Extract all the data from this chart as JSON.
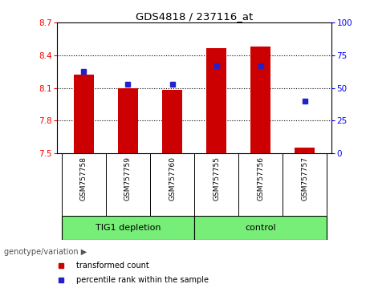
{
  "title": "GDS4818 / 237116_at",
  "samples": [
    "GSM757758",
    "GSM757759",
    "GSM757760",
    "GSM757755",
    "GSM757756",
    "GSM757757"
  ],
  "bar_values": [
    8.22,
    8.1,
    8.08,
    8.47,
    8.48,
    7.55
  ],
  "percentile_values": [
    63,
    53,
    53,
    67,
    67,
    40
  ],
  "ylim_left": [
    7.5,
    8.7
  ],
  "ylim_right": [
    0,
    100
  ],
  "yticks_left": [
    7.5,
    7.8,
    8.1,
    8.4,
    8.7
  ],
  "yticks_right": [
    0,
    25,
    50,
    75,
    100
  ],
  "bar_color": "#cc0000",
  "dot_color": "#2222cc",
  "bar_bottom": 7.5,
  "group1_label": "TIG1 depletion",
  "group2_label": "control",
  "group1_indices": [
    0,
    1,
    2
  ],
  "group2_indices": [
    3,
    4,
    5
  ],
  "group_fill": "#77ee77",
  "xtick_bg": "#c8c8c8",
  "legend_red": "transformed count",
  "legend_blue": "percentile rank within the sample",
  "xlabel_text": "genotype/variation",
  "background_color": "#ffffff"
}
